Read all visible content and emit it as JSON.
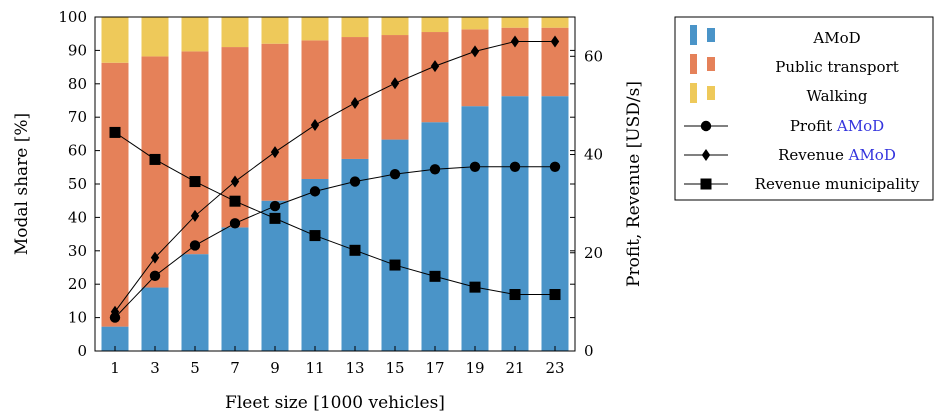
{
  "chart_data": {
    "type": "bar",
    "categories": [
      "1",
      "3",
      "5",
      "7",
      "9",
      "11",
      "13",
      "15",
      "17",
      "19",
      "21",
      "23"
    ],
    "xlabel": "Fleet size [1000 vehicles]",
    "ylabel": "Modal share [%]",
    "ylabel_right": "Profit, Revenue [USD/s]",
    "ylim": [
      0,
      100
    ],
    "ylim_right": [
      0,
      68
    ],
    "yticks": [
      "0",
      "10",
      "20",
      "30",
      "40",
      "50",
      "60",
      "70",
      "80",
      "90",
      "100"
    ],
    "yticks_right": [
      "0",
      "20",
      "40",
      "60"
    ],
    "stacked_series": [
      {
        "name": "AMoD",
        "color": "#4a94c8",
        "values": [
          7.3,
          19,
          29,
          37,
          45,
          51.5,
          57.5,
          63.3,
          68.5,
          73.3,
          76.3,
          76.3
        ]
      },
      {
        "name": "Public transport",
        "color": "#e58159",
        "values": [
          79,
          69.2,
          60.7,
          54,
          47,
          41.5,
          36.5,
          31.3,
          27,
          23,
          20.5,
          20.5
        ]
      },
      {
        "name": "Walking",
        "color": "#eec95a",
        "values": [
          13.7,
          11.8,
          10.3,
          9,
          8,
          7,
          6,
          5.4,
          4.5,
          3.7,
          3.2,
          3.2
        ]
      }
    ],
    "line_series": [
      {
        "name": "Profit",
        "name_highlight": "AMoD",
        "marker": "circle",
        "values": [
          6.8,
          15.3,
          21.5,
          26,
          29.5,
          32.5,
          34.5,
          36,
          37,
          37.5,
          37.5,
          37.5
        ]
      },
      {
        "name": "Revenue",
        "name_highlight": "AMoD",
        "marker": "diamond",
        "values": [
          8,
          19,
          27.5,
          34.5,
          40.5,
          46,
          50.5,
          54.5,
          58,
          61,
          63,
          63
        ]
      },
      {
        "name": "Revenue municipality",
        "name_highlight": "",
        "marker": "square",
        "values": [
          44.5,
          39,
          34.5,
          30.5,
          27,
          23.5,
          20.5,
          17.5,
          15.2,
          13,
          11.5,
          11.5
        ]
      }
    ],
    "legend_position": "right",
    "highlight_color": "#3333dd",
    "grid": false
  }
}
